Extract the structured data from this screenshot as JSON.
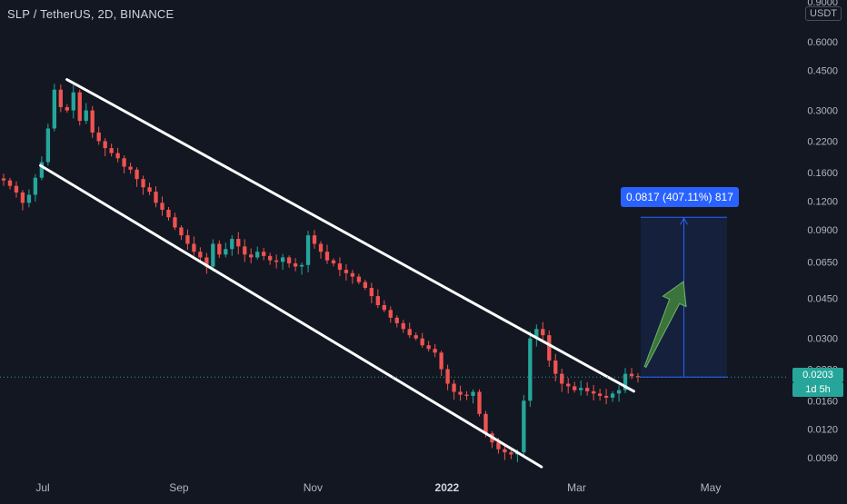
{
  "title": "SLP / TetherUS, 2D, BINANCE",
  "currency": "USDT",
  "measure_label": "0.0817 (407.11%) 817",
  "last_price": {
    "value": "0.0203",
    "countdown": "1d 5h"
  },
  "colors": {
    "background": "#131722",
    "up": "#26a69a",
    "down": "#ef5350",
    "channel": "#ffffff",
    "measure": "#2962ff",
    "arrow": "#3f7d3a"
  },
  "chart_data": {
    "type": "candlestick",
    "scale": "log",
    "y_ticks": [
      "0.9000",
      "0.6000",
      "0.4500",
      "0.3000",
      "0.2200",
      "0.1600",
      "0.1200",
      "0.0900",
      "0.0650",
      "0.0450",
      "0.0300",
      "0.0220",
      "0.0160",
      "0.0120",
      "0.0090"
    ],
    "x_ticks": [
      "Jul",
      "Sep",
      "Nov",
      "2022",
      "Mar",
      "May"
    ],
    "ylim": [
      0.0075,
      1.0
    ],
    "closes": [
      0.148,
      0.14,
      0.131,
      0.118,
      0.128,
      0.152,
      0.178,
      0.25,
      0.37,
      0.31,
      0.3,
      0.36,
      0.27,
      0.3,
      0.24,
      0.22,
      0.205,
      0.195,
      0.185,
      0.17,
      0.165,
      0.15,
      0.138,
      0.132,
      0.118,
      0.11,
      0.102,
      0.092,
      0.085,
      0.078,
      0.072,
      0.068,
      0.062,
      0.078,
      0.07,
      0.074,
      0.082,
      0.076,
      0.07,
      0.068,
      0.072,
      0.069,
      0.066,
      0.065,
      0.068,
      0.064,
      0.062,
      0.063,
      0.085,
      0.078,
      0.072,
      0.066,
      0.064,
      0.06,
      0.058,
      0.056,
      0.053,
      0.05,
      0.046,
      0.042,
      0.04,
      0.037,
      0.035,
      0.033,
      0.031,
      0.03,
      0.028,
      0.027,
      0.026,
      0.022,
      0.019,
      0.0175,
      0.017,
      0.0168,
      0.0175,
      0.014,
      0.0115,
      0.0105,
      0.0098,
      0.0095,
      0.0093,
      0.0095,
      0.016,
      0.03,
      0.033,
      0.031,
      0.024,
      0.021,
      0.019,
      0.0185,
      0.0178,
      0.0182,
      0.0176,
      0.0172,
      0.0168,
      0.0165,
      0.0172,
      0.0178,
      0.021,
      0.0205,
      0.0203
    ],
    "channel_upper": [
      {
        "date": "2021-07-12",
        "price": 0.41
      },
      {
        "date": "2022-03-27",
        "price": 0.0176
      }
    ],
    "channel_lower": [
      {
        "date": "2021-06-30",
        "price": 0.172
      },
      {
        "date": "2022-02-13",
        "price": 0.0082
      }
    ],
    "measure": {
      "from_price": 0.0203,
      "to_price": 0.102,
      "change": 0.0817,
      "change_pct": 407.11
    },
    "current_price": 0.0203
  }
}
